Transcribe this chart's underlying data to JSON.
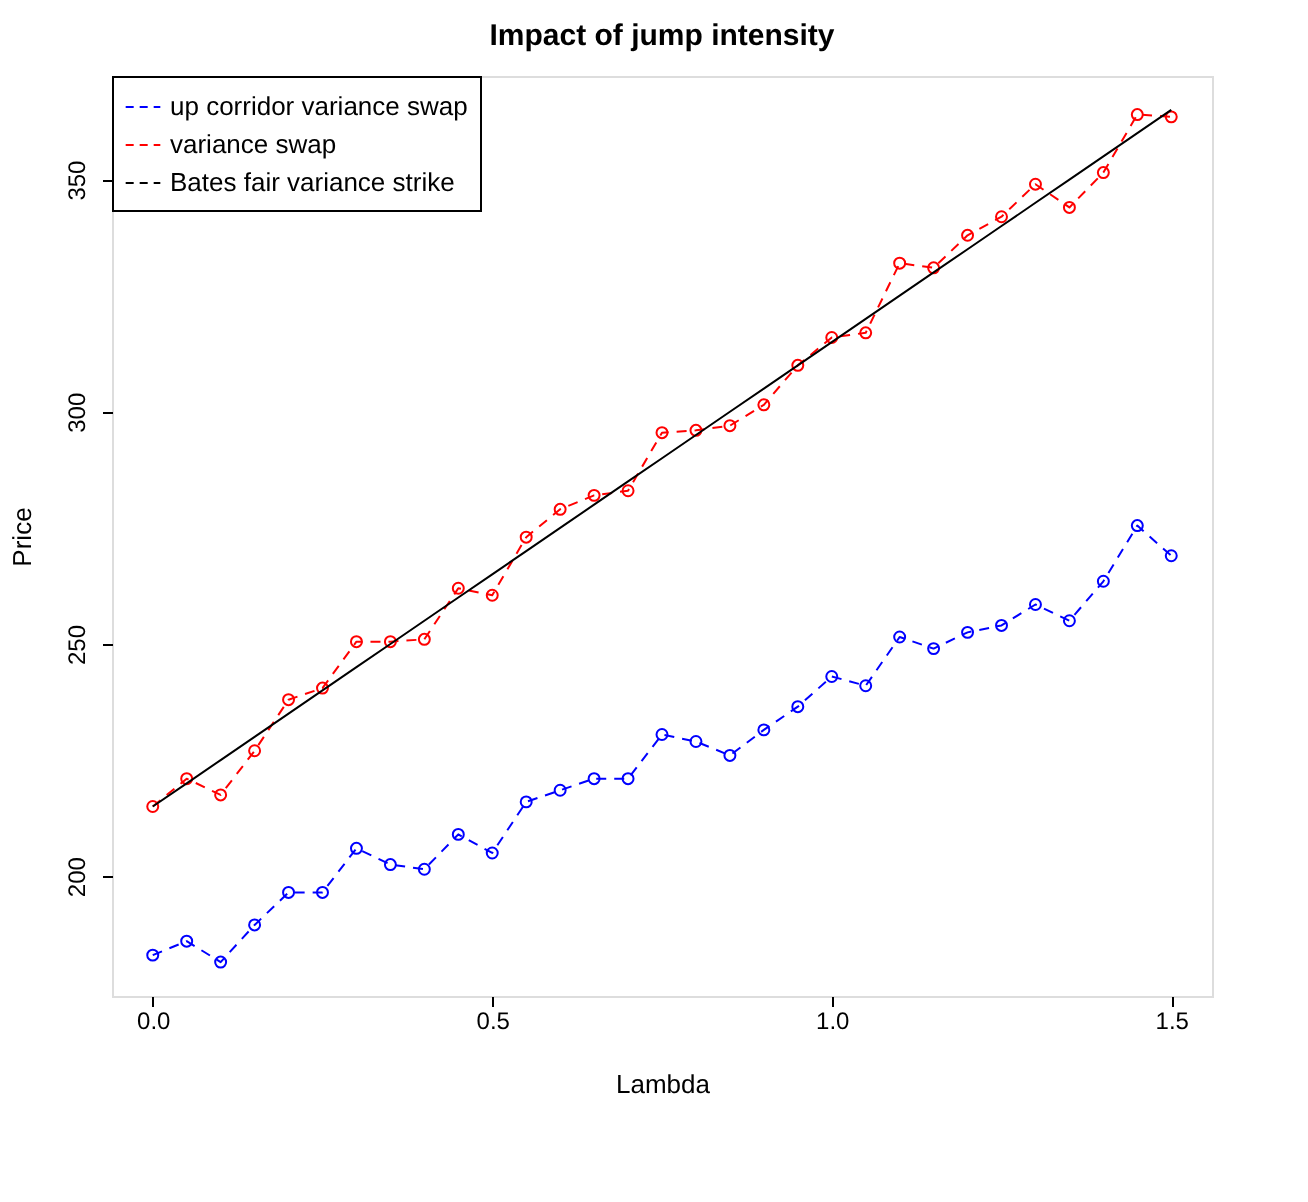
{
  "chart_data": {
    "type": "line",
    "title": "Impact of jump intensity",
    "xlabel": "Lambda",
    "ylabel": "Price",
    "x": [
      0,
      0.05,
      0.1,
      0.15,
      0.2,
      0.25,
      0.3,
      0.35,
      0.4,
      0.45,
      0.5,
      0.55,
      0.6,
      0.65,
      0.7,
      0.75,
      0.8,
      0.85,
      0.9,
      0.95,
      1.0,
      1.05,
      1.1,
      1.15,
      1.2,
      1.25,
      1.3,
      1.35,
      1.4,
      1.45,
      1.5
    ],
    "series": [
      {
        "name": "up corridor variance swap",
        "color": "#0000ff",
        "line_style": "dashed",
        "marker": "circle",
        "values": [
          183,
          186,
          181.5,
          189.5,
          196.5,
          196.5,
          206,
          202.5,
          201.5,
          209,
          205,
          216,
          218.5,
          221,
          221,
          230.5,
          229,
          226,
          231.5,
          236.5,
          243,
          241,
          251.5,
          249,
          252.5,
          254,
          258.5,
          255,
          263.5,
          275.5,
          269
        ]
      },
      {
        "name": "variance swap",
        "color": "#ff0000",
        "line_style": "dashed",
        "marker": "circle",
        "values": [
          215,
          221,
          217.5,
          227,
          238,
          240.5,
          250.5,
          250.5,
          251,
          262,
          260.5,
          273,
          279,
          282,
          283,
          295.5,
          296,
          297,
          301.5,
          310,
          316,
          317,
          332,
          331,
          338,
          342,
          349,
          344,
          351.5,
          364,
          363.5
        ]
      },
      {
        "name": "Bates fair variance strike",
        "color": "#000000",
        "line_style": "solid",
        "marker": "none",
        "values": [
          215,
          220,
          225,
          230,
          235,
          240,
          245,
          250,
          255,
          260,
          265,
          270,
          275,
          280,
          285,
          290,
          295,
          300,
          305,
          310,
          315,
          320,
          325,
          330,
          335,
          340,
          345,
          350,
          355,
          360,
          365
        ]
      }
    ],
    "xlim": [
      -0.06,
      1.56
    ],
    "ylim": [
      174.2,
      372.3
    ],
    "xticks": [
      {
        "value": 0,
        "label": "0.0"
      },
      {
        "value": 0.5,
        "label": "0.5"
      },
      {
        "value": 1,
        "label": "1.0"
      },
      {
        "value": 1.5,
        "label": "1.5"
      }
    ],
    "yticks": [
      200,
      250,
      300,
      350
    ],
    "grid": false,
    "legend": "top left"
  }
}
